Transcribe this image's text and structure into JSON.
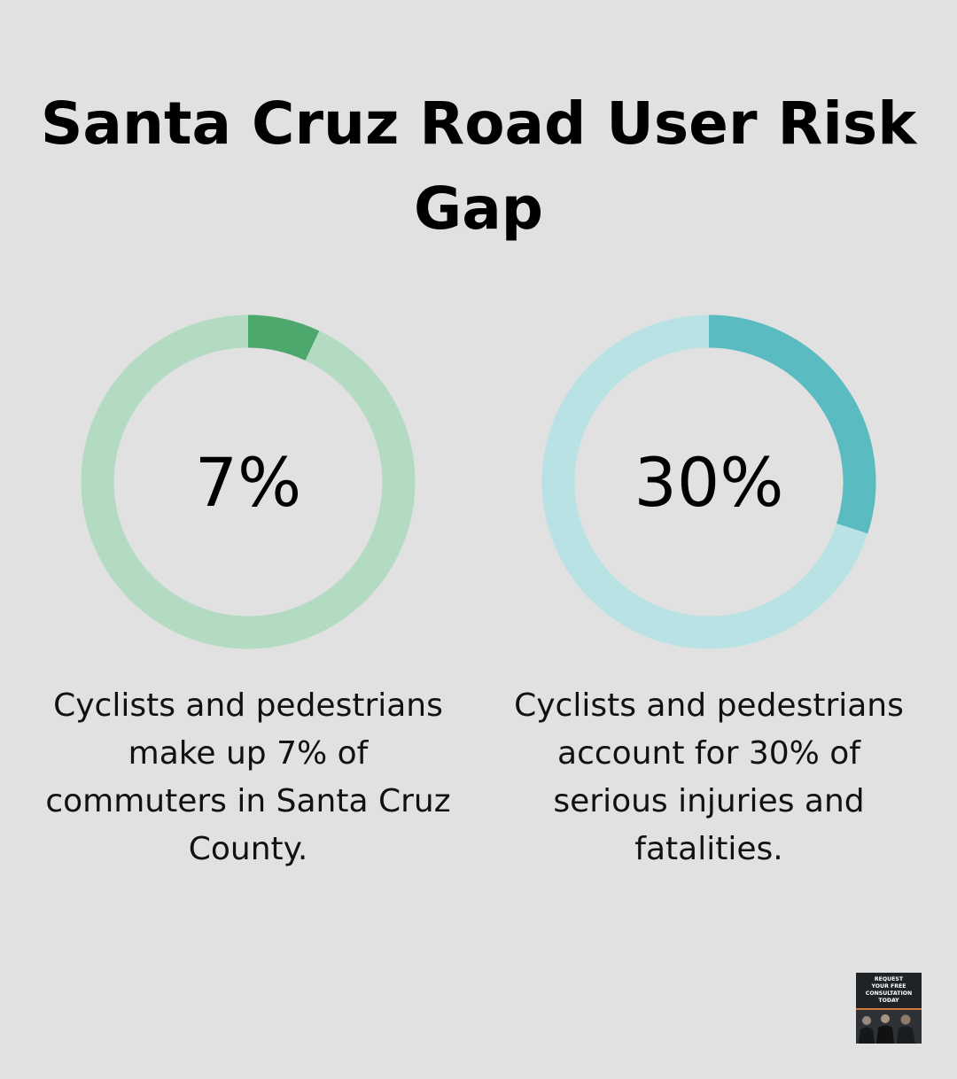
{
  "title": "Santa Cruz Road User Risk Gap",
  "chart_data": [
    {
      "type": "pie",
      "style": "donut",
      "value": 7,
      "max": 100,
      "label": "7%",
      "caption": "Cyclists and pedestrians make up 7% of commuters in Santa Cruz County.",
      "colors": {
        "fill": "#4ca86d",
        "track": "#b2dbc2"
      }
    },
    {
      "type": "pie",
      "style": "donut",
      "value": 30,
      "max": 100,
      "label": "30%",
      "caption": "Cyclists and pedestrians account for 30% of serious injuries and fatalities.",
      "colors": {
        "fill": "#5abbc0",
        "track": "#b9e2e4"
      }
    }
  ],
  "cta": {
    "text": "REQUEST\nYOUR FREE\nCONSULTATION\nTODAY"
  },
  "colors": {
    "background": "#e0e1e0",
    "text": "#000000"
  }
}
